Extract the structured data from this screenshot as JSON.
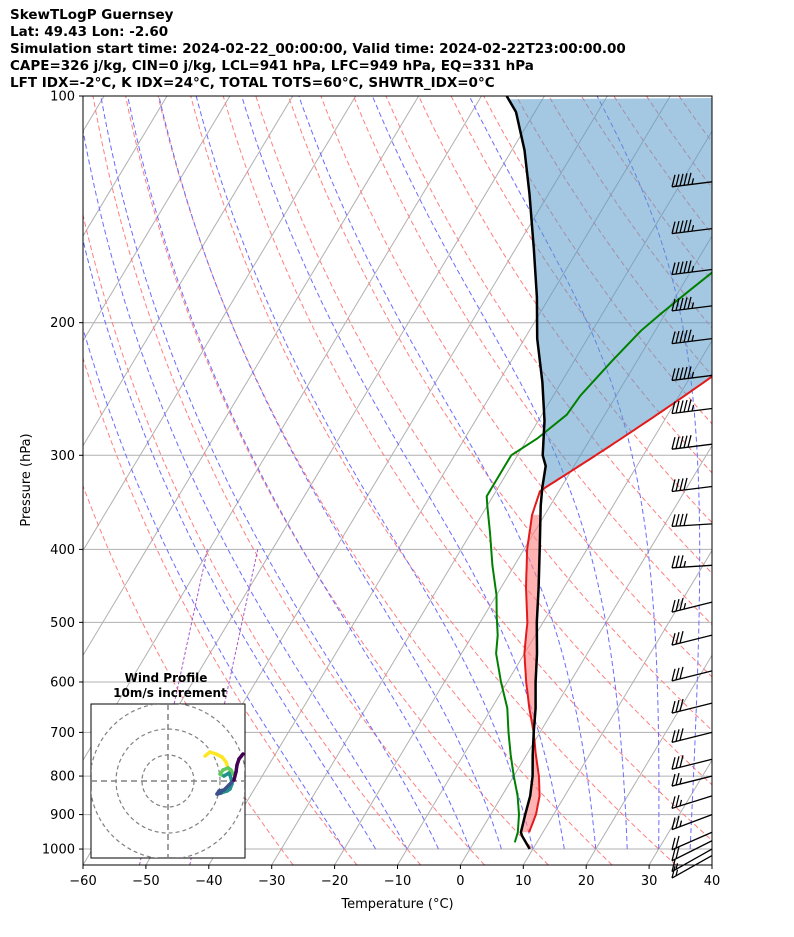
{
  "header": {
    "lines": [
      "SkewTLogP Guernsey",
      "Lat: 49.43   Lon: -2.60",
      "Simulation start time: 2024-02-22_00:00:00, Valid time: 2024-02-22T23:00:00.00",
      "CAPE=326 j/kg, CIN=0 j/kg, LCL=941 hPa, LFC=949 hPa, EQ=331 hPa",
      "LFT IDX=-2°C, K IDX=24°C, TOTAL TOTS=60°C, SHWTR_IDX=0°C"
    ]
  },
  "chart_data": {
    "type": "line",
    "title": "SkewTLogP Guernsey",
    "xlabel": "Temperature (°C)",
    "ylabel": "Pressure (hPa)",
    "xlim": [
      -60,
      40
    ],
    "ylim": [
      1050,
      100
    ],
    "y_scale": "log",
    "x_ticks": [
      "−60",
      "−50",
      "−40",
      "−30",
      "−20",
      "−10",
      "0",
      "10",
      "20",
      "30",
      "40"
    ],
    "y_ticks": [
      "100",
      "200",
      "300",
      "400",
      "500",
      "600",
      "700",
      "800",
      "900",
      "1000"
    ],
    "grid": true,
    "series": [
      {
        "kind": "temperature",
        "color": "#e31a1c",
        "points": [
          [
            7.8,
            950
          ],
          [
            7.2,
            900
          ],
          [
            6,
            850
          ],
          [
            4,
            800
          ],
          [
            1.5,
            750
          ],
          [
            -1,
            700
          ],
          [
            -4,
            650
          ],
          [
            -7,
            600
          ],
          [
            -10,
            550
          ],
          [
            -12.5,
            500
          ],
          [
            -16,
            450
          ],
          [
            -19.5,
            400
          ],
          [
            -22,
            360
          ],
          [
            -23,
            335
          ],
          [
            -22.5,
            331
          ],
          [
            -25,
            315
          ],
          [
            -26.5,
            300
          ],
          [
            -28,
            285
          ],
          [
            -30,
            270
          ],
          [
            -33,
            250
          ],
          [
            -35.5,
            230
          ],
          [
            -38,
            210
          ],
          [
            -40,
            200
          ],
          [
            -42,
            180
          ],
          [
            -43,
            165
          ],
          [
            -44,
            150
          ],
          [
            -45,
            140
          ],
          [
            -46,
            125
          ],
          [
            -47,
            115
          ],
          [
            -48,
            108
          ],
          [
            -49,
            100
          ]
        ]
      },
      {
        "kind": "dewpoint",
        "color": "#008000",
        "points": [
          [
            6.5,
            980
          ],
          [
            6,
            950
          ],
          [
            4.5,
            900
          ],
          [
            2.5,
            850
          ],
          [
            0,
            800
          ],
          [
            -2.5,
            750
          ],
          [
            -5,
            700
          ],
          [
            -7.5,
            650
          ],
          [
            -11,
            600
          ],
          [
            -14.5,
            550
          ],
          [
            -16,
            520
          ],
          [
            -18,
            490
          ],
          [
            -20,
            460
          ],
          [
            -23.5,
            420
          ],
          [
            -27,
            380
          ],
          [
            -30,
            350
          ],
          [
            -31,
            340
          ],
          [
            -31,
            320
          ],
          [
            -31,
            300
          ],
          [
            -30.5,
            285
          ],
          [
            -31,
            265
          ],
          [
            -33,
            250
          ],
          [
            -35.5,
            225
          ],
          [
            -37.5,
            205
          ],
          [
            -38,
            195
          ],
          [
            -38.5,
            182
          ],
          [
            -39,
            168
          ],
          [
            -40,
            158
          ],
          [
            -42,
            145
          ],
          [
            -45,
            132
          ],
          [
            -49,
            120
          ],
          [
            -53,
            110
          ],
          [
            -58,
            100
          ]
        ]
      },
      {
        "kind": "parcel",
        "color": "#000000",
        "points": [
          [
            9.5,
            1000
          ],
          [
            7,
            960
          ],
          [
            6.5,
            950
          ],
          [
            5.5,
            900
          ],
          [
            4.5,
            850
          ],
          [
            3,
            800
          ],
          [
            1,
            750
          ],
          [
            -1,
            700
          ],
          [
            -3,
            650
          ],
          [
            -5.5,
            600
          ],
          [
            -8,
            550
          ],
          [
            -11,
            500
          ],
          [
            -14,
            450
          ],
          [
            -17.5,
            400
          ],
          [
            -21.5,
            350
          ],
          [
            -23,
            331
          ],
          [
            -24.5,
            310
          ],
          [
            -26,
            300
          ],
          [
            -29,
            270
          ],
          [
            -33,
            240
          ],
          [
            -38,
            210
          ],
          [
            -42,
            185
          ],
          [
            -47,
            160
          ],
          [
            -53,
            135
          ],
          [
            -58,
            118
          ],
          [
            -63,
            105
          ],
          [
            -66,
            100
          ]
        ]
      }
    ],
    "shading": {
      "cape_color": "#5a9ac9",
      "small_cape_color": "#ff8080"
    },
    "dry_adiabat_color": "#ff7f7f",
    "moist_adiabat_color": "#6b6bff",
    "mixing_ratio_color": "#aa55cc",
    "wind_barbs": {
      "pressures": [
        130,
        150,
        170,
        190,
        210,
        235,
        260,
        290,
        330,
        370,
        420,
        470,
        520,
        580,
        640,
        700,
        760,
        800,
        850,
        900,
        950,
        975,
        1000,
        1020
      ],
      "speed_kt": [
        55,
        55,
        55,
        55,
        55,
        55,
        55,
        50,
        40,
        40,
        35,
        35,
        30,
        30,
        30,
        30,
        30,
        25,
        25,
        25,
        20,
        20,
        15,
        15
      ],
      "direction_deg": [
        280,
        280,
        280,
        280,
        280,
        280,
        280,
        280,
        280,
        285,
        285,
        270,
        270,
        270,
        270,
        270,
        270,
        270,
        265,
        260,
        255,
        250,
        245,
        245
      ]
    },
    "hodograph": {
      "title": "Wind Profile",
      "subtitle": "10m/s increment",
      "ring_increment_ms": 10,
      "rings": [
        10,
        20,
        30
      ],
      "uv": [
        [
          3,
          -4
        ],
        [
          4,
          -3
        ],
        [
          5,
          -2
        ],
        [
          5.5,
          -1
        ],
        [
          6,
          0
        ],
        [
          6.5,
          1
        ],
        [
          7,
          2
        ],
        [
          7.5,
          3
        ],
        [
          8,
          4
        ],
        [
          8.5,
          5
        ],
        [
          9,
          6
        ],
        [
          9.5,
          7
        ],
        [
          10,
          7
        ],
        [
          9,
          8
        ],
        [
          7,
          8
        ],
        [
          5.5,
          7.5
        ],
        [
          5,
          6.5
        ],
        [
          5.5,
          5.5
        ],
        [
          6.5,
          4.5
        ],
        [
          7.5,
          4
        ],
        [
          8,
          4.5
        ]
      ],
      "colormap": [
        "#440154",
        "#3b528b",
        "#21918c",
        "#5ec962",
        "#fde725"
      ]
    }
  }
}
